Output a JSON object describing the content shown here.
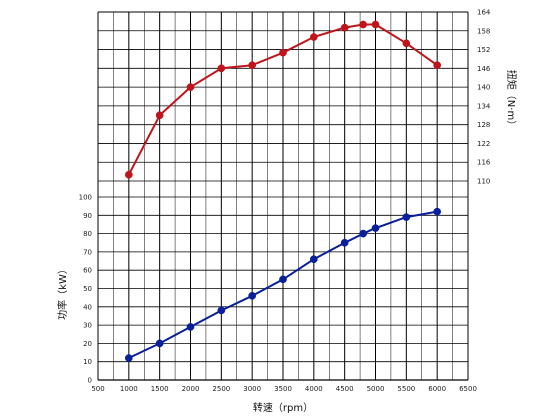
{
  "chart_data": {
    "type": "line",
    "x_axis": {
      "label": "转速（rpm）",
      "min": 500,
      "max": 6500,
      "ticks": [
        500,
        1000,
        1500,
        2000,
        2500,
        3000,
        3500,
        4000,
        4500,
        5000,
        5500,
        6000,
        6500
      ]
    },
    "y_axis_left": {
      "label": "功率（kW）",
      "min": 0,
      "max": 100,
      "ticks": [
        0,
        10,
        20,
        30,
        40,
        50,
        60,
        70,
        80,
        90,
        100
      ]
    },
    "y_axis_right": {
      "label": "扭矩（N·m）",
      "min": 110,
      "max": 164,
      "ticks": [
        110,
        116,
        122,
        128,
        134,
        140,
        146,
        152,
        158,
        164
      ]
    },
    "grid": true,
    "series": [
      {
        "axis": "right",
        "color": "#c0141c",
        "points": [
          [
            1000,
            112
          ],
          [
            1500,
            131
          ],
          [
            2000,
            140
          ],
          [
            2500,
            146
          ],
          [
            3000,
            147
          ],
          [
            3500,
            151
          ],
          [
            4000,
            156
          ],
          [
            4500,
            159
          ],
          [
            4800,
            160
          ],
          [
            5000,
            160
          ],
          [
            5500,
            154
          ],
          [
            6000,
            147
          ]
        ]
      },
      {
        "axis": "left",
        "color": "#0a1f9a",
        "points": [
          [
            1000,
            12
          ],
          [
            1500,
            20
          ],
          [
            2000,
            29
          ],
          [
            2500,
            38
          ],
          [
            3000,
            46
          ],
          [
            3500,
            55
          ],
          [
            4000,
            66
          ],
          [
            4500,
            75
          ],
          [
            4800,
            80
          ],
          [
            5000,
            83
          ],
          [
            5500,
            89
          ],
          [
            6000,
            92
          ]
        ]
      }
    ]
  }
}
